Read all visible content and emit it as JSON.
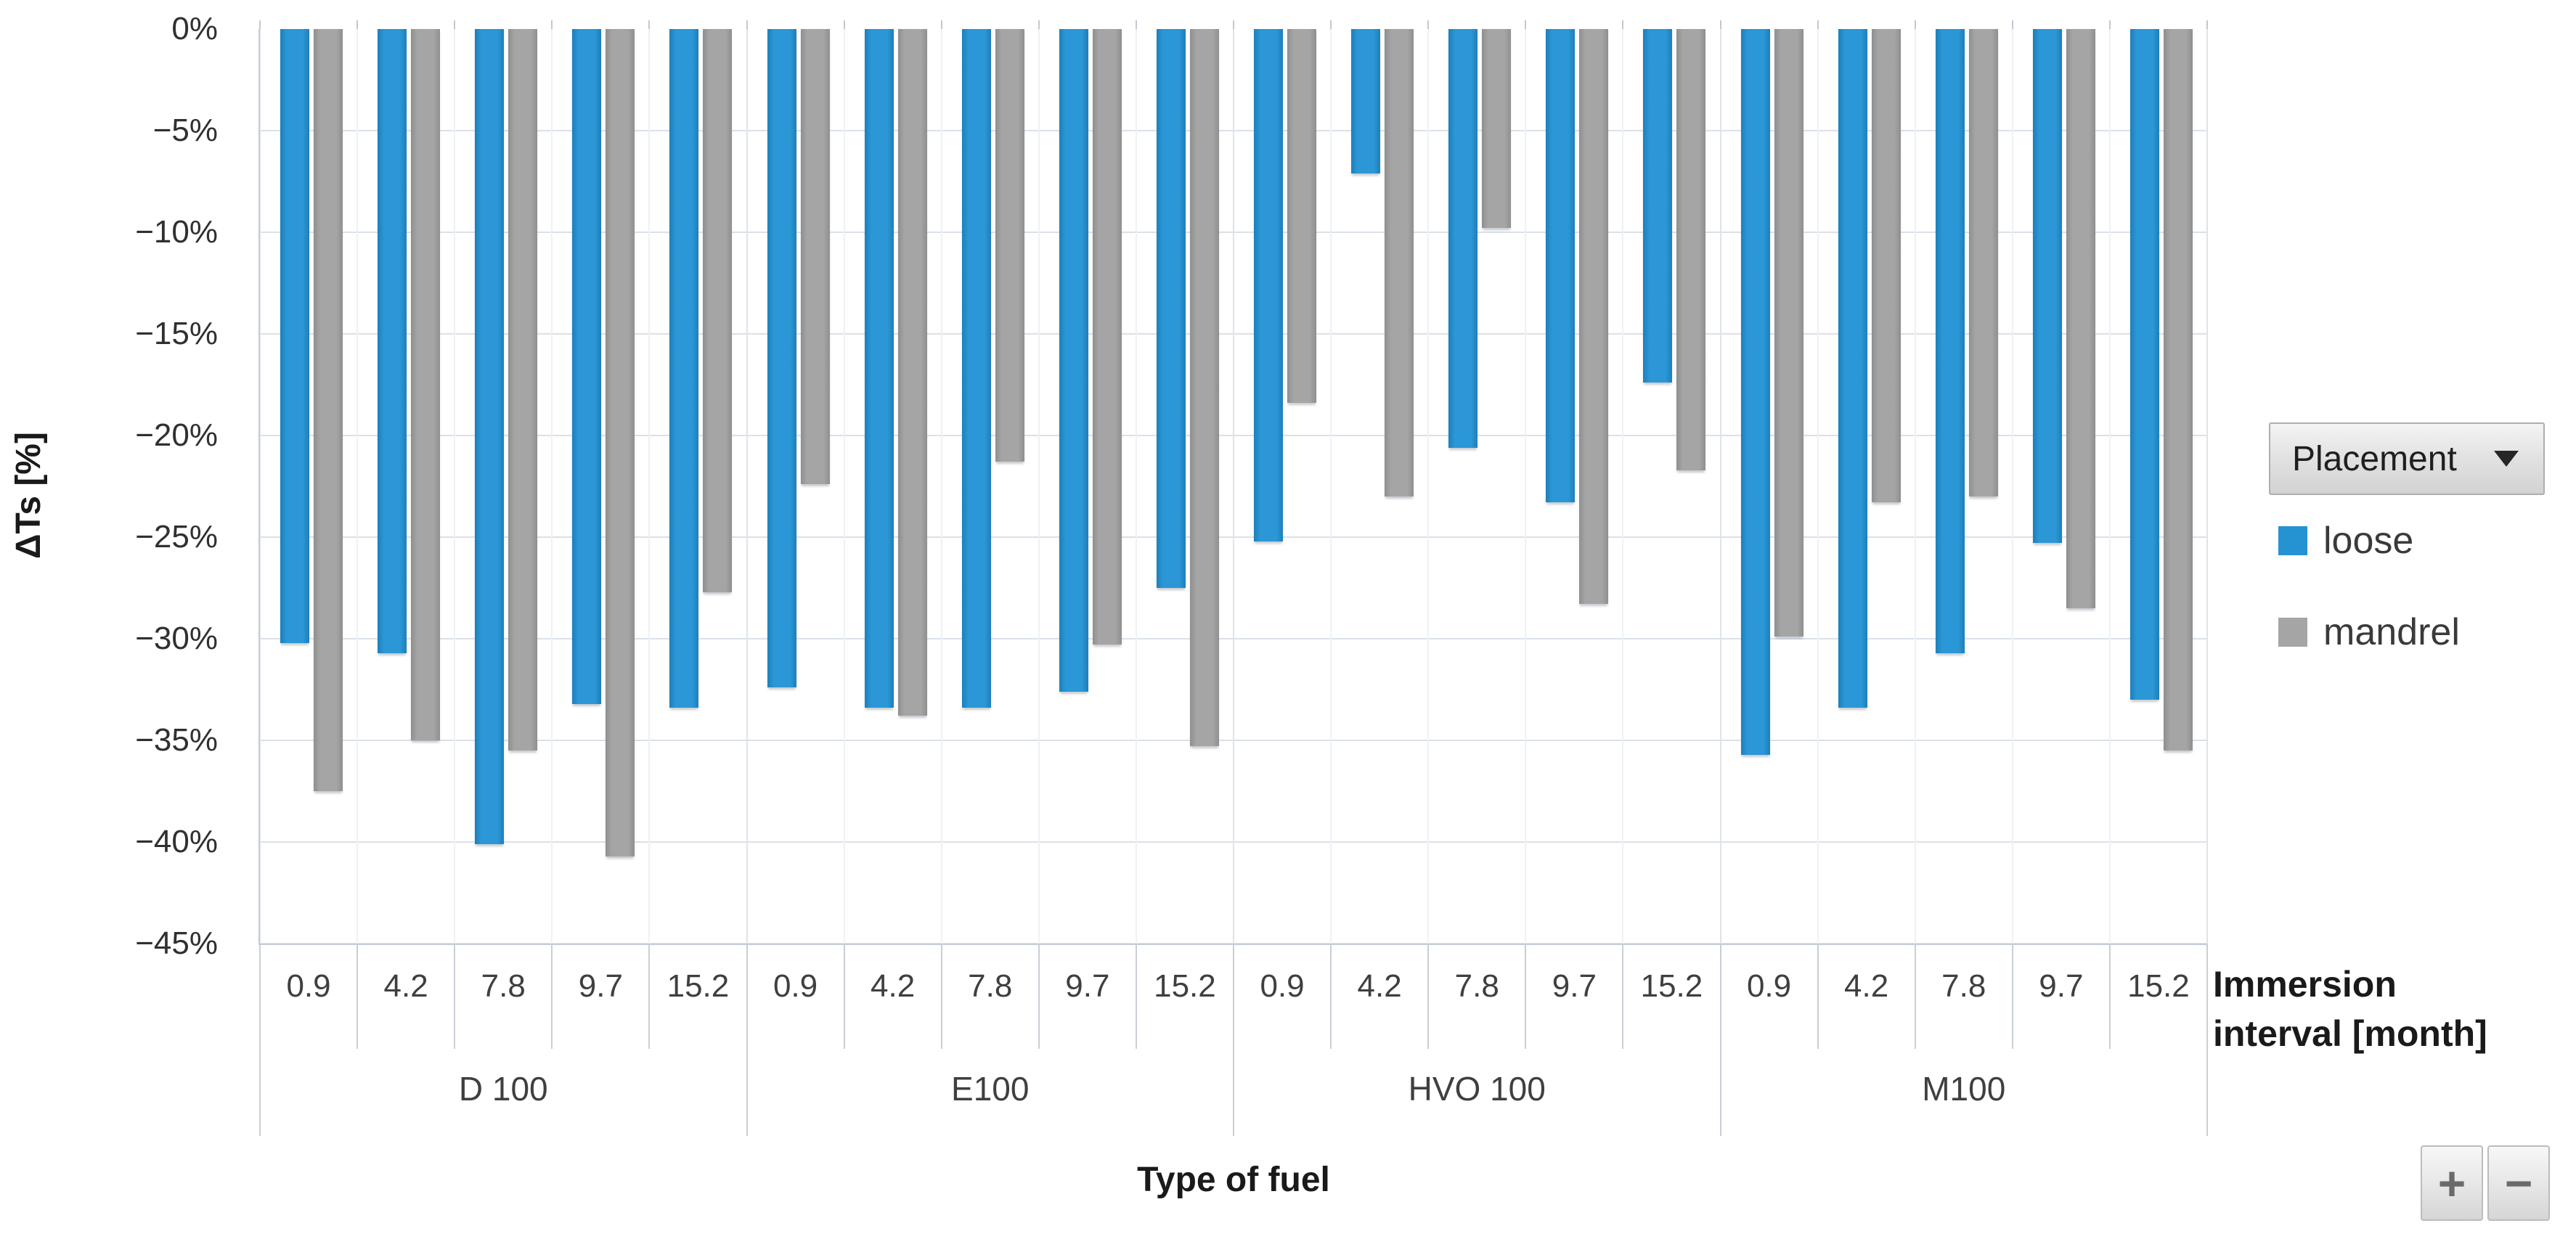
{
  "chart_data": {
    "type": "bar",
    "orientation": "vertical-negative",
    "title": "",
    "xlabel": "Type of fuel",
    "ylabel": "ΔTs [%]",
    "ylim": [
      0,
      -45
    ],
    "grid": true,
    "legend_position": "right",
    "y_ticks": [
      "0%",
      "−5%",
      "−10%",
      "−15%",
      "−20%",
      "−25%",
      "−30%",
      "−35%",
      "−40%",
      "−45%"
    ],
    "interval_ticks": [
      "0.9",
      "4.2",
      "7.8",
      "9.7",
      "15.2"
    ],
    "groups": [
      {
        "label": "D 100",
        "series": [
          {
            "name": "loose",
            "values": [
              -30.2,
              -30.7,
              -40.1,
              -33.2,
              -33.4
            ]
          },
          {
            "name": "mandrel",
            "values": [
              -37.5,
              -35.0,
              -35.5,
              -40.7,
              -27.7
            ]
          }
        ]
      },
      {
        "label": "E100",
        "series": [
          {
            "name": "loose",
            "values": [
              -32.4,
              -33.4,
              -33.4,
              -32.6,
              -27.5
            ]
          },
          {
            "name": "mandrel",
            "values": [
              -22.4,
              -33.8,
              -21.3,
              -30.3,
              -35.3
            ]
          }
        ]
      },
      {
        "label": "HVO 100",
        "series": [
          {
            "name": "loose",
            "values": [
              -25.2,
              -7.1,
              -20.6,
              -23.3,
              -17.4
            ]
          },
          {
            "name": "mandrel",
            "values": [
              -18.4,
              -23.0,
              -9.8,
              -28.3,
              -21.7
            ]
          }
        ]
      },
      {
        "label": "M100",
        "series": [
          {
            "name": "loose",
            "values": [
              -35.7,
              -33.4,
              -30.7,
              -25.3,
              -33.0
            ]
          },
          {
            "name": "mandrel",
            "values": [
              -29.9,
              -23.3,
              -23.0,
              -28.5,
              -35.5
            ]
          }
        ]
      }
    ]
  },
  "y_axis": {
    "title": "ΔTs [%]"
  },
  "x_axis": {
    "fuel_label": "Type of fuel",
    "interval_label_line1": "Immersion",
    "interval_label_line2": "interval [month]"
  },
  "pivot": {
    "field_button_label": "Placement",
    "expand_button": "+",
    "collapse_button": "−"
  },
  "legend": {
    "entries": [
      {
        "label": "loose",
        "color": "#2592D2"
      },
      {
        "label": "mandrel",
        "color": "#A5A5A5"
      }
    ]
  }
}
